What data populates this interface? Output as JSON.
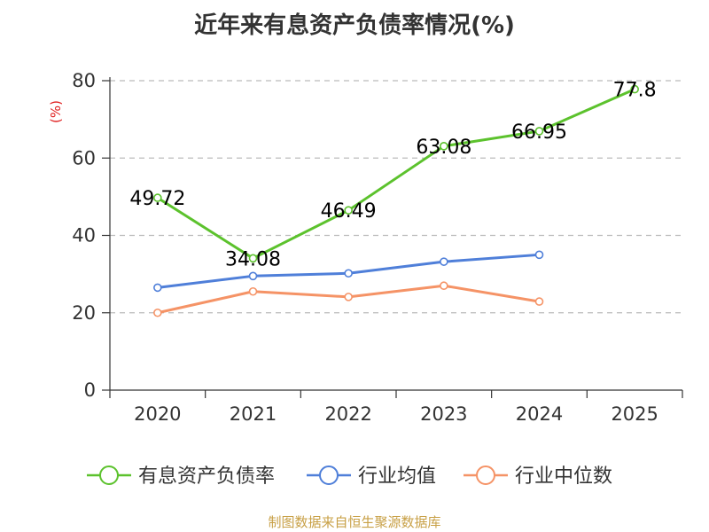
{
  "chart_data": {
    "type": "line",
    "title": "近年来有息资产负债率情况(%)",
    "ylabel": "(%)",
    "xlabel": "",
    "categories": [
      "2020",
      "2021",
      "2022",
      "2023",
      "2024",
      "2025"
    ],
    "ylim": [
      0,
      80
    ],
    "yticks": [
      0,
      20,
      40,
      60,
      80
    ],
    "grid": true,
    "legend_position": "bottom",
    "series": [
      {
        "name": "有息资产负债率",
        "color": "#5cc22d",
        "values": [
          49.72,
          34.08,
          46.49,
          63.08,
          66.95,
          77.8
        ],
        "labels": [
          "49.72",
          "34.08",
          "46.49",
          "63.08",
          "66.95",
          "77.8"
        ]
      },
      {
        "name": "行业均值",
        "color": "#4f7fd9",
        "values": [
          26.5,
          29.5,
          30.2,
          33.2,
          35.0,
          null
        ]
      },
      {
        "name": "行业中位数",
        "color": "#f59366",
        "values": [
          20.0,
          25.5,
          24.1,
          27.0,
          22.9,
          null
        ]
      }
    ]
  },
  "source_text": "制图数据来自恒生聚源数据库"
}
